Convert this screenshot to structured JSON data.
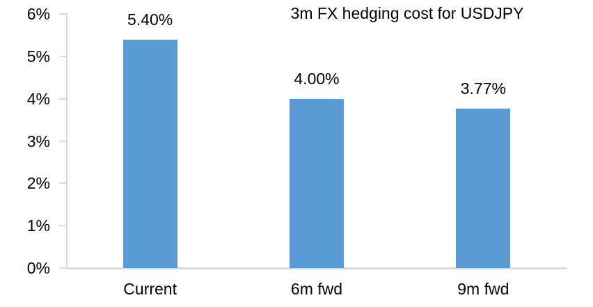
{
  "chart_data": {
    "type": "bar",
    "title": "3m FX hedging cost for USDJPY",
    "categories": [
      "Current",
      "6m fwd",
      "9m fwd"
    ],
    "values": [
      5.4,
      4.0,
      3.77
    ],
    "value_labels": [
      "5.40%",
      "4.00%",
      "3.77%"
    ],
    "xlabel": "",
    "ylabel": "",
    "ylim": [
      0,
      6
    ],
    "ytick_labels": [
      "0%",
      "1%",
      "2%",
      "3%",
      "4%",
      "5%",
      "6%"
    ],
    "grid": "off",
    "legend": "none",
    "colors": {
      "bar": "#5B9BD5",
      "axis": "#D9D9D9",
      "text": "#000000",
      "background": "#FFFFFF"
    }
  }
}
